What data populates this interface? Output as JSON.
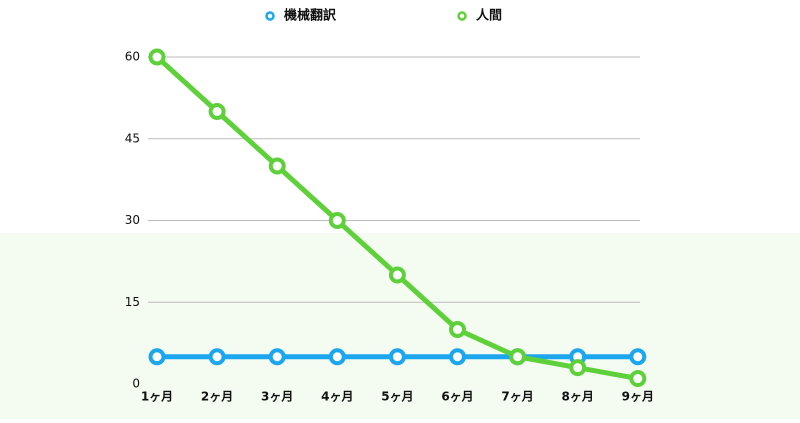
{
  "chart_data": {
    "type": "line",
    "categories": [
      "1ヶ月",
      "2ヶ月",
      "3ヶ月",
      "4ヶ月",
      "5ヶ月",
      "6ヶ月",
      "7ヶ月",
      "8ヶ月",
      "9ヶ月"
    ],
    "series": [
      {
        "name": "機械翻訳",
        "color": "#1ba6ee",
        "values": [
          5,
          5,
          5,
          5,
          5,
          5,
          5,
          5,
          5
        ]
      },
      {
        "name": "人間",
        "color": "#5ed13a",
        "values": [
          60,
          50,
          40,
          30,
          20,
          10,
          5,
          3,
          1
        ]
      }
    ],
    "ylim": [
      0,
      60
    ],
    "yticks": [
      0,
      15,
      30,
      45,
      60
    ],
    "grid": true,
    "legend": "top"
  }
}
